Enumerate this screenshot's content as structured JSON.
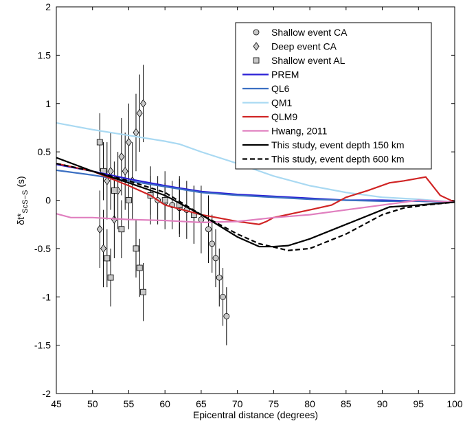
{
  "chart_data": {
    "type": "line",
    "xlabel": "Epicentral distance (degrees)",
    "ylabel": {
      "main": "δt*",
      "sub": "ScS−S",
      "unit": "(s)"
    },
    "xlim": [
      45,
      100
    ],
    "ylim": [
      -2,
      2
    ],
    "xticks": [
      45,
      50,
      55,
      60,
      65,
      70,
      75,
      80,
      85,
      90,
      95,
      100
    ],
    "yticks": [
      -2,
      -1.5,
      -1,
      -0.5,
      0,
      0.5,
      1,
      1.5,
      2
    ],
    "legend": "upper right",
    "scatter": [
      {
        "name": "Shallow event CA",
        "marker": "circle",
        "color": "#c8c8c8",
        "x": [
          58,
          59,
          60,
          61,
          62,
          63,
          64,
          65,
          66,
          66.5,
          67,
          67.5,
          68,
          68.5
        ],
        "values": [
          0.05,
          0,
          -0.02,
          -0.05,
          -0.08,
          -0.1,
          -0.15,
          -0.2,
          -0.3,
          -0.45,
          -0.6,
          -0.8,
          -1,
          -1.2
        ],
        "errors": [
          0.2,
          0.25,
          0.2,
          0.25,
          0.3,
          0.3,
          0.3,
          0.35,
          0.35,
          0.3,
          0.3,
          0.3,
          0.3,
          0.3
        ]
      },
      {
        "name": "Deep event CA",
        "marker": "diamond",
        "color": "#c8c8c8",
        "x": [
          51,
          51.5,
          52,
          52.5,
          53,
          53.5,
          54,
          54.5,
          55,
          55.5,
          56,
          56.5,
          57
        ],
        "values": [
          -0.3,
          -0.5,
          0.2,
          0.3,
          -0.2,
          0.1,
          0.45,
          0.3,
          0.6,
          0.2,
          0.7,
          0.9,
          1
        ],
        "errors": [
          0.4,
          0.4,
          0.4,
          0.4,
          0.4,
          0.4,
          0.4,
          0.4,
          0.4,
          0.4,
          0.4,
          0.4,
          0.4
        ]
      },
      {
        "name": "Shallow event AL",
        "marker": "square",
        "color": "#c8c8c8",
        "x": [
          51,
          51.5,
          52,
          52.5,
          53,
          54,
          55,
          56,
          56.5,
          57,
          58,
          60,
          62,
          64
        ],
        "values": [
          0.6,
          0.3,
          -0.6,
          -0.8,
          0.1,
          -0.3,
          0,
          -0.5,
          -0.7,
          -0.95,
          0.05,
          0,
          -0.05,
          -0.15
        ],
        "errors": [
          0.3,
          0.3,
          0.3,
          0.3,
          0.3,
          0.3,
          0.3,
          0.3,
          0.3,
          0.3,
          0.3,
          0.3,
          0.3,
          0.3
        ]
      }
    ],
    "series": [
      {
        "name": "PREM",
        "color": "#2a1fd6",
        "dash": false,
        "x": [
          45,
          50,
          55,
          60,
          65,
          70,
          75,
          80,
          85,
          90,
          95,
          100
        ],
        "values": [
          0.37,
          0.3,
          0.22,
          0.15,
          0.09,
          0.06,
          0.04,
          0.02,
          0,
          0,
          -0.01,
          -0.02
        ]
      },
      {
        "name": "QL6",
        "color": "#3b6fc2",
        "dash": false,
        "x": [
          45,
          50,
          55,
          60,
          65,
          70,
          75,
          80,
          85,
          90,
          95,
          100
        ],
        "values": [
          0.31,
          0.26,
          0.2,
          0.14,
          0.08,
          0.05,
          0.03,
          0.01,
          0,
          -0.01,
          -0.01,
          -0.02
        ]
      },
      {
        "name": "QM1",
        "color": "#a9d9f2",
        "dash": false,
        "x": [
          45,
          50,
          55,
          60,
          62,
          65,
          70,
          75,
          80,
          85,
          90,
          95,
          100
        ],
        "values": [
          0.8,
          0.73,
          0.67,
          0.61,
          0.58,
          0.5,
          0.38,
          0.25,
          0.15,
          0.08,
          0.03,
          0.01,
          -0.02
        ]
      },
      {
        "name": "QLM9",
        "color": "#d02424",
        "dash": false,
        "x": [
          45,
          50,
          55,
          58,
          60,
          65,
          70,
          73,
          74,
          75,
          80,
          83,
          85,
          88,
          91,
          93,
          96,
          98,
          100
        ],
        "values": [
          0.38,
          0.3,
          0.15,
          0.05,
          -0.05,
          -0.15,
          -0.22,
          -0.25,
          -0.22,
          -0.18,
          -0.1,
          -0.05,
          0.03,
          0.1,
          0.18,
          0.2,
          0.24,
          0.05,
          -0.02
        ]
      },
      {
        "name": "Hwang, 2011",
        "color": "#e07fbf",
        "dash": false,
        "x": [
          45,
          47,
          50,
          55,
          60,
          65,
          70,
          75,
          80,
          85,
          90,
          95,
          100
        ],
        "values": [
          -0.14,
          -0.18,
          -0.18,
          -0.2,
          -0.21,
          -0.23,
          -0.22,
          -0.18,
          -0.15,
          -0.1,
          -0.05,
          0,
          -0.02
        ]
      },
      {
        "name": "This study, event depth 150 km",
        "color": "#000000",
        "dash": false,
        "x": [
          45,
          50,
          55,
          60,
          65,
          70,
          73,
          75,
          77,
          80,
          85,
          90,
          91,
          95,
          100
        ],
        "values": [
          0.44,
          0.3,
          0.18,
          0.05,
          -0.15,
          -0.38,
          -0.48,
          -0.48,
          -0.47,
          -0.4,
          -0.25,
          -0.1,
          -0.07,
          -0.05,
          -0.02
        ]
      },
      {
        "name": "This study, event depth 600 km",
        "color": "#000000",
        "dash": true,
        "x": [
          45,
          50,
          55,
          60,
          65,
          70,
          73,
          77,
          80,
          85,
          90,
          93,
          96,
          100
        ],
        "values": [
          0.38,
          0.3,
          0.2,
          0.08,
          -0.15,
          -0.35,
          -0.45,
          -0.52,
          -0.5,
          -0.35,
          -0.15,
          -0.08,
          -0.05,
          -0.02
        ]
      }
    ]
  }
}
